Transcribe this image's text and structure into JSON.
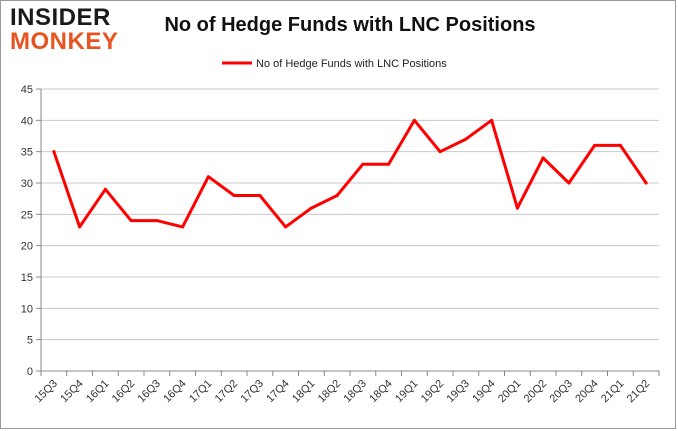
{
  "logo": {
    "line1": "INSIDER",
    "line2": "MONKEY"
  },
  "chart_data": {
    "type": "line",
    "title": "No of Hedge Funds with LNC Positions",
    "xlabel": "",
    "ylabel": "",
    "categories": [
      "15Q3",
      "15Q4",
      "16Q1",
      "16Q2",
      "16Q3",
      "16Q4",
      "17Q1",
      "17Q2",
      "17Q3",
      "17Q4",
      "18Q1",
      "18Q2",
      "18Q3",
      "18Q4",
      "19Q1",
      "19Q2",
      "19Q3",
      "19Q4",
      "20Q1",
      "20Q2",
      "20Q3",
      "20Q4",
      "21Q1",
      "21Q2"
    ],
    "series": [
      {
        "name": "No of Hedge Funds with LNC Positions",
        "color": "#ff0000",
        "values": [
          35,
          23,
          29,
          24,
          24,
          23,
          31,
          28,
          28,
          23,
          26,
          28,
          33,
          33,
          40,
          35,
          37,
          40,
          26,
          34,
          30,
          36,
          36,
          30
        ]
      }
    ],
    "ylim": [
      0,
      45
    ],
    "yticks": [
      0,
      5,
      10,
      15,
      20,
      25,
      30,
      35,
      40,
      45
    ],
    "grid": true,
    "legend_position": "top"
  }
}
